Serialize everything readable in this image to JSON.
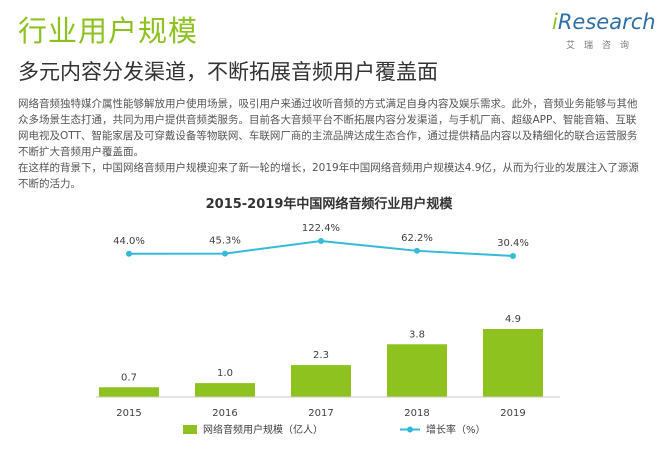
{
  "header": {
    "title": "行业用户规模",
    "subtitle": "多元内容分发渠道，不断拓展音频用户覆盖面"
  },
  "logo": {
    "brand_i": "i",
    "brand_rest": "Research",
    "sub": "艾瑞咨询",
    "accent": "#8dc21f",
    "brand_color": "#2f6fa8"
  },
  "body": {
    "paragraph1": "网络音频独特媒介属性能够解放用户使用场景，吸引用户来通过收听音频的方式满足自身内容及娱乐需求。此外，音频业务能够与其他众多场景生态打通，共同为用户提供音频类服务。目前各大音频平台不断拓展内容分发渠道，与手机厂商、超级APP、智能音箱、互联网电视及OTT、智能家居及可穿戴设备等物联网、车联网厂商的主流品牌达成生态合作，通过提供精品内容以及精细化的联合运营服务不断扩大音频用户覆盖面。",
    "paragraph2": "在这样的背景下，中国网络音频用户规模迎来了新一轮的增长，2019年中国网络音频用户规模达4.9亿，从而为行业的发展注入了源源不断的活力。"
  },
  "chart_data": {
    "type": "bar",
    "title": "2015-2019年中国网络音频行业用户规模",
    "categories": [
      "2015",
      "2016",
      "2017",
      "2018",
      "2019"
    ],
    "series": [
      {
        "name": "网络音频用户规模（亿人）",
        "type": "bar",
        "values": [
          0.7,
          1.0,
          2.3,
          3.8,
          4.9
        ],
        "labels": [
          "0.7",
          "1.0",
          "2.3",
          "3.8",
          "4.9"
        ],
        "color": "#8dc21f"
      },
      {
        "name": "增长率（%）",
        "type": "line",
        "values": [
          44.0,
          45.3,
          122.4,
          62.2,
          30.4
        ],
        "labels": [
          "44.0%",
          "45.3%",
          "122.4%",
          "62.2%",
          "30.4%"
        ],
        "color": "#33bbd9"
      }
    ],
    "legend": "bottom",
    "grid": false
  }
}
